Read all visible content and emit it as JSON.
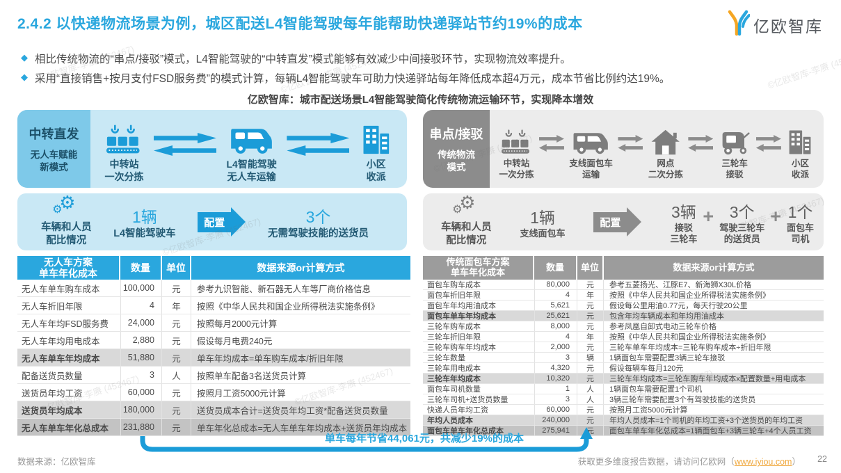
{
  "page": {
    "title": "2.4.2 以快递物流场景为例，城区配送L4智能驾驶每年能帮助快递驿站节约19%的成本",
    "logo_text": "亿欧智库",
    "bullets": [
      "相比传统物流的“串点/接驳”模式，L4智能驾驶的“中转直发”模式能够有效减少中间接驳环节，实现物流效率提升。",
      "采用“直接销售+按月支付FSD服务费”的模式计算，每辆L4智能驾驶车可助力快递驿站每年降低成本超4万元，成本节省比例约达19%。"
    ],
    "diagram_title": "亿欧智库：城市配送场景L4智能驾驶简化传统物流运输环节，实现降本增效",
    "watermark": "©亿欧智库-李赓 (452467)",
    "savings_note": "单车每年节省44,061元，共减少19%的成本",
    "footer": {
      "source": "数据来源：亿欧智库",
      "more_prefix": "获取更多维度报告数据，请访问亿欧网（",
      "url": "www.iyiou.com",
      "more_suffix": "）",
      "page_number": "22"
    }
  },
  "colors": {
    "accent_blue": "#2aa7de",
    "icon_blue": "#1b9cd8",
    "light_blue_bg": "#c9e8f5",
    "badge_blue": "#7ec9e9",
    "gray_bg": "#ececec",
    "badge_gray": "#8c8c8c",
    "table_header_gray": "#9c9c9c",
    "highlight_row": "#d9d9d9",
    "total_row": "#c3c3c3",
    "orange": "#f0a93f"
  },
  "flows": {
    "new_mode": {
      "badge_title": "中转直发",
      "badge_subtitle": "无人车赋能\n新模式",
      "steps": [
        {
          "icon": "conveyor-icon",
          "label": "中转站\n一次分拣"
        },
        {
          "icon": "van-icon",
          "label": "L4智能驾驶\n无人车运输"
        },
        {
          "icon": "building-icon",
          "label": "小区\n收派"
        }
      ]
    },
    "traditional": {
      "badge_title": "串点/接驳",
      "badge_subtitle": "传统物流\n模式",
      "steps": [
        {
          "icon": "conveyor-icon",
          "label": "中转站\n一次分拣"
        },
        {
          "icon": "van-icon",
          "label": "支线面包车\n运输"
        },
        {
          "icon": "house-icon",
          "label": "网点\n二次分拣"
        },
        {
          "icon": "tricycle-icon",
          "label": "三轮车\n接驳"
        },
        {
          "icon": "building-icon",
          "label": "小区\n收派"
        }
      ]
    }
  },
  "ratios": {
    "new_mode": {
      "label": "车辆和人员\n配比情况",
      "base_qty": "1辆",
      "base_name": "L4智能驾驶车",
      "arrow_label": "配置",
      "items": [
        {
          "qty": "3个",
          "name": "无需驾驶技能的送货员"
        }
      ]
    },
    "traditional": {
      "label": "车辆和人员\n配比情况",
      "base_qty": "1辆",
      "base_name": "支线面包车",
      "arrow_label": "配置",
      "plus": "+",
      "items": [
        {
          "qty": "3辆",
          "name": "接驳\n三轮车"
        },
        {
          "qty": "3个",
          "name": "驾驶三轮车\n的送货员"
        },
        {
          "qty": "1个",
          "name": "面包车\n司机"
        }
      ]
    }
  },
  "tables": {
    "new_mode": {
      "headers": [
        "无人车方案\n单车年化成本",
        "数量",
        "单位",
        "数据来源or计算方式"
      ],
      "rows": [
        {
          "label": "无人车单车购车成本",
          "qty": "100,000",
          "unit": "元",
          "source": "参考九识智能、新石器无人车等厂商价格信息",
          "style": "normal"
        },
        {
          "label": "无人车折旧年限",
          "qty": "4",
          "unit": "年",
          "source": "按照《中华人民共和国企业所得税法实施条例》",
          "style": "normal"
        },
        {
          "label": "无人车年均FSD服务费",
          "qty": "24,000",
          "unit": "元",
          "source": "按照每月2000元计算",
          "style": "normal"
        },
        {
          "label": "无人车年均用电成本",
          "qty": "2,880",
          "unit": "元",
          "source": "假设每月电费240元",
          "style": "normal"
        },
        {
          "label": "无人车单车年均成本",
          "qty": "51,880",
          "unit": "元",
          "source": "单车年均成本=单车购车成本/折旧年限",
          "style": "subtotal"
        },
        {
          "label": "配备送货员数量",
          "qty": "3",
          "unit": "人",
          "source": "按照单车配备3名送货员计算",
          "style": "normal"
        },
        {
          "label": "送货员年均工资",
          "qty": "60,000",
          "unit": "元",
          "source": "按照月工资5000元计算",
          "style": "normal"
        },
        {
          "label": "送货员年均成本",
          "qty": "180,000",
          "unit": "元",
          "source": "送货员成本合计=送货员年均工资*配备送货员数量",
          "style": "subtotal"
        },
        {
          "label": "无人车单车年化总成本",
          "qty": "231,880",
          "unit": "元",
          "source": "单车年化总成本=无人车单车年均成本+送货员年均成本",
          "style": "total"
        }
      ]
    },
    "traditional": {
      "headers": [
        "传统面包车方案\n单车年化成本",
        "数量",
        "单位",
        "数据来源or计算方式"
      ],
      "rows": [
        {
          "label": "面包车购车成本",
          "qty": "80,000",
          "unit": "元",
          "source": "参考五菱扬光、江豚E7、新海狮X30L价格",
          "style": "normal"
        },
        {
          "label": "面包车折旧年限",
          "qty": "4",
          "unit": "年",
          "source": "按照《中华人民共和国企业所得税法实施条例》",
          "style": "normal"
        },
        {
          "label": "面包车年均用油成本",
          "qty": "5,621",
          "unit": "元",
          "source": "假设每公里用油0.77元，每天行驶20公里",
          "style": "normal"
        },
        {
          "label": "面包车单车年均成本",
          "qty": "25,621",
          "unit": "元",
          "source": "包含年均车辆成本和年均用油成本",
          "style": "subtotal"
        },
        {
          "label": "三轮车购车成本",
          "qty": "8,000",
          "unit": "元",
          "source": "参考凤凰自卸式电动三轮车价格",
          "style": "normal"
        },
        {
          "label": "三轮车折旧年限",
          "qty": "4",
          "unit": "年",
          "source": "按照《中华人民共和国企业所得税法实施条例》",
          "style": "normal"
        },
        {
          "label": "三轮车购车年均成本",
          "qty": "2,000",
          "unit": "元",
          "source": "三轮车单车年均成本=三轮车购车成本÷折旧年限",
          "style": "normal"
        },
        {
          "label": "三轮车数量",
          "qty": "3",
          "unit": "辆",
          "source": "1辆面包车需要配置3辆三轮车接驳",
          "style": "normal"
        },
        {
          "label": "三轮车用电成本",
          "qty": "4,320",
          "unit": "元",
          "source": "假设每辆车每月120元",
          "style": "normal"
        },
        {
          "label": "三轮车年均成本",
          "qty": "10,320",
          "unit": "元",
          "source": "三轮车年均成本=三轮车购车年均成本x配置数量+用电成本",
          "style": "subtotal"
        },
        {
          "label": "面包车司机数量",
          "qty": "1",
          "unit": "人",
          "source": "1辆面包车需要配置1个司机",
          "style": "normal"
        },
        {
          "label": "三轮车司机+送货员数量",
          "qty": "3",
          "unit": "人",
          "source": "3辆三轮车需要配置3个有驾驶技能的送货员",
          "style": "normal"
        },
        {
          "label": "快递人员年均工资",
          "qty": "60,000",
          "unit": "元",
          "source": "按照月工资5000元计算",
          "style": "normal"
        },
        {
          "label": "年均人员成本",
          "qty": "240,000",
          "unit": "元",
          "source": "年均人员成本=1个司机的年均工资+3个送货员的年均工资",
          "style": "subtotal"
        },
        {
          "label": "面包车单车年化总成本",
          "qty": "275,941",
          "unit": "元",
          "source": "面包车单车年化总成本=1辆面包车+3辆三轮车+4个人员工资",
          "style": "total"
        }
      ]
    }
  }
}
